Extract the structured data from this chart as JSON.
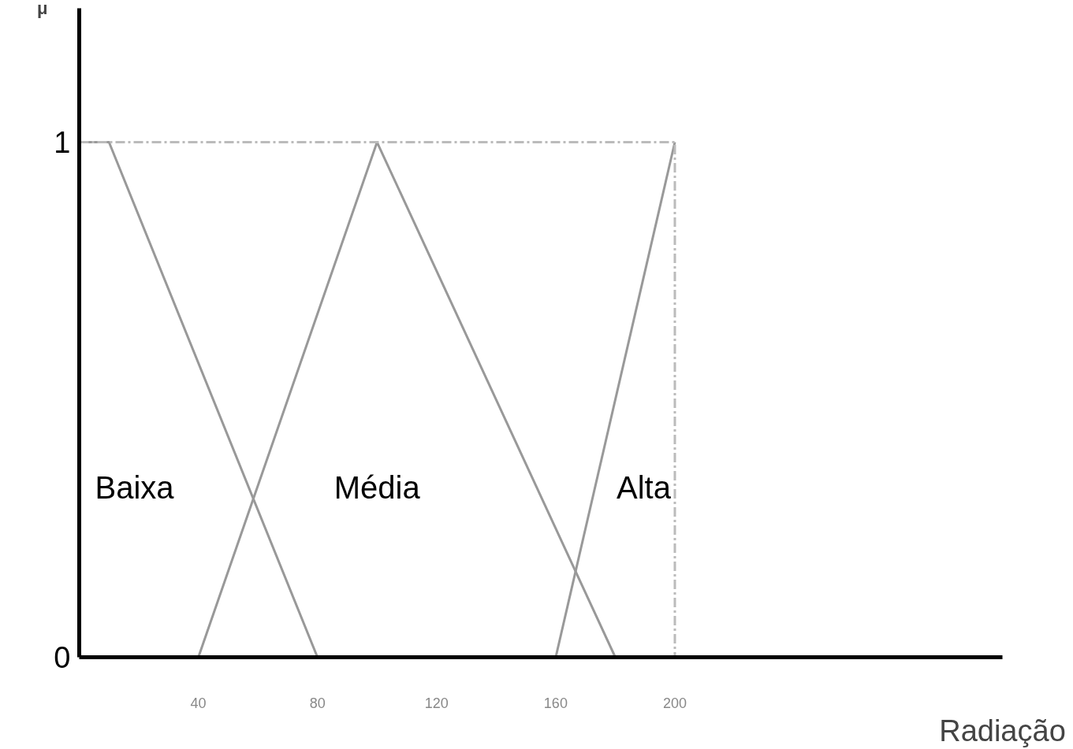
{
  "chart_data": {
    "type": "line",
    "xlabel": "Radiação",
    "ylabel": "μ",
    "xlim": [
      0,
      310
    ],
    "ylim": [
      0,
      1.26
    ],
    "xticks": [
      40,
      80,
      120,
      160,
      200
    ],
    "yticks": [
      0,
      1
    ],
    "grid": false,
    "line_style": "solid",
    "marker": "none",
    "series": [
      {
        "name": "Baixa",
        "color": "#999999",
        "x": [
          0,
          10,
          80
        ],
        "values": [
          1,
          1,
          0
        ]
      },
      {
        "name": "Média",
        "color": "#999999",
        "x": [
          40,
          100,
          180
        ],
        "values": [
          0,
          1,
          0
        ]
      },
      {
        "name": "Alta",
        "color": "#999999",
        "x": [
          160,
          200
        ],
        "values": [
          0,
          1
        ]
      },
      {
        "color": "#bbbbbb",
        "x": [
          0,
          200,
          200
        ],
        "values": [
          1,
          1,
          0
        ],
        "line_style": "dashed"
      }
    ]
  }
}
